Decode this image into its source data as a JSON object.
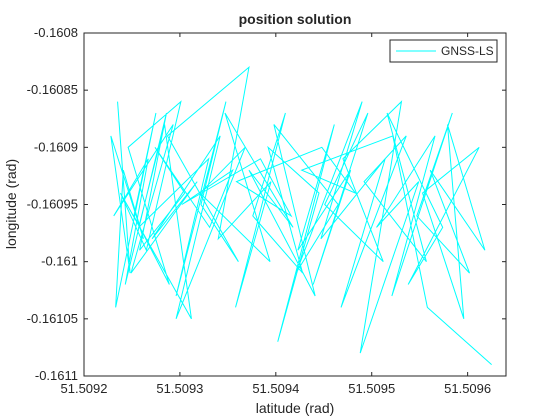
{
  "chart_data": {
    "type": "line",
    "title": "position solution",
    "x_label": "latitude (rad)",
    "y_label": "longitude (rad)",
    "xlim": [
      51.5092,
      51.50964
    ],
    "ylim": [
      -0.1611,
      -0.1608
    ],
    "xticks": [
      51.5092,
      51.5093,
      51.5094,
      51.5095,
      51.5096
    ],
    "yticks": [
      -0.1611,
      -0.16105,
      -0.161,
      -0.16095,
      -0.1609,
      -0.16085,
      -0.1608
    ],
    "legend": "northeast",
    "grid": false,
    "series": [
      {
        "name": "GNSS-LS",
        "color": "#00ffff",
        "x": [
          51.509235,
          51.509248,
          51.509228,
          51.509262,
          51.509241,
          51.509233,
          51.509275,
          51.509252,
          51.509289,
          51.509246,
          51.509301,
          51.509265,
          51.509238,
          51.509312,
          51.509284,
          51.509257,
          51.50933,
          51.509296,
          51.509348,
          51.509322,
          51.509361,
          51.509287,
          51.509372,
          51.50934,
          51.509395,
          51.509358,
          51.50941,
          51.509376,
          51.509428,
          51.509392,
          51.509445,
          51.509402,
          51.509461,
          51.509423,
          51.509478,
          51.509439,
          51.509496,
          51.509451,
          51.509512,
          51.50947,
          51.509531,
          51.509488,
          51.509549,
          51.509505,
          51.509566,
          51.509521,
          51.509584,
          51.509547,
          51.509602,
          51.509561,
          51.509618,
          51.509579,
          51.509596,
          51.509553,
          51.509612,
          51.509538,
          51.509574,
          51.509516,
          51.509557,
          51.509492,
          51.509536,
          51.509468,
          51.509514,
          51.509447,
          51.50949,
          51.509421,
          51.509465,
          51.509398,
          51.509441,
          51.509372,
          51.509418,
          51.509347,
          51.509394,
          51.509321,
          51.509368,
          51.509296,
          51.509342,
          51.509271,
          51.509318,
          51.509249,
          51.509293,
          51.509231,
          51.509267,
          51.509243,
          51.509286,
          51.509258,
          51.509305,
          51.509274,
          51.509331,
          51.509355,
          51.509302,
          51.509384,
          51.509416,
          51.509359,
          51.509448,
          51.509483,
          51.509427,
          51.509522,
          51.509558,
          51.509625
        ],
        "values": [
          -0.16086,
          -0.16101,
          -0.16089,
          -0.16098,
          -0.16092,
          -0.16104,
          -0.16087,
          -0.16096,
          -0.16102,
          -0.1609,
          -0.16086,
          -0.16099,
          -0.16094,
          -0.16105,
          -0.16088,
          -0.16097,
          -0.16091,
          -0.16103,
          -0.16086,
          -0.16095,
          -0.161,
          -0.16089,
          -0.16083,
          -0.16098,
          -0.16093,
          -0.16104,
          -0.16087,
          -0.16096,
          -0.16101,
          -0.1609,
          -0.16094,
          -0.16107,
          -0.16088,
          -0.16099,
          -0.16092,
          -0.16102,
          -0.16087,
          -0.16095,
          -0.161,
          -0.16091,
          -0.16086,
          -0.16108,
          -0.16093,
          -0.16097,
          -0.16089,
          -0.16103,
          -0.16087,
          -0.16096,
          -0.16101,
          -0.16092,
          -0.16099,
          -0.16088,
          -0.16105,
          -0.16094,
          -0.1609,
          -0.16102,
          -0.16097,
          -0.16087,
          -0.161,
          -0.16093,
          -0.16089,
          -0.16104,
          -0.16091,
          -0.16098,
          -0.16086,
          -0.16101,
          -0.16095,
          -0.16088,
          -0.16103,
          -0.16092,
          -0.16097,
          -0.16087,
          -0.161,
          -0.16094,
          -0.1609,
          -0.16105,
          -0.16089,
          -0.16098,
          -0.16093,
          -0.16101,
          -0.16088,
          -0.16096,
          -0.16091,
          -0.16102,
          -0.16087,
          -0.16099,
          -0.16094,
          -0.1609,
          -0.16097,
          -0.16092,
          -0.16095,
          -0.16091,
          -0.16096,
          -0.16093,
          -0.1609,
          -0.16094,
          -0.16092,
          -0.16089,
          -0.16104,
          -0.16109
        ]
      }
    ]
  }
}
